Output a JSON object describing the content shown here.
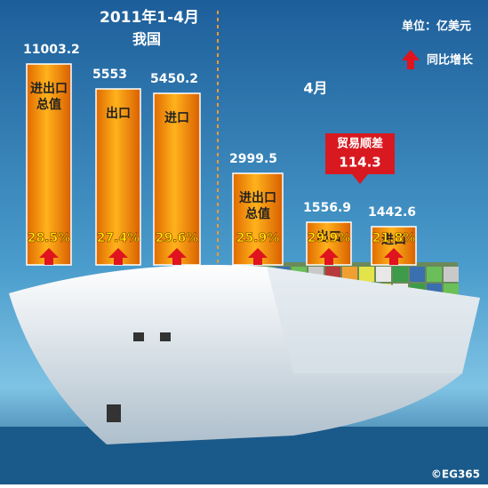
{
  "header": {
    "period": "2011年1-4月",
    "scope": "我国",
    "unit": "单位：亿美元",
    "legend": "同比增长"
  },
  "month_label": "4月",
  "groups": [
    {
      "bars": [
        {
          "value": "11003.2",
          "name": [
            "进出口",
            "总值"
          ],
          "growth": "28.5%"
        },
        {
          "value": "5553",
          "name": [
            "出口"
          ],
          "growth": "27.4%"
        },
        {
          "value": "5450.2",
          "name": [
            "进口"
          ],
          "growth": "29.6%"
        }
      ]
    },
    {
      "bars": [
        {
          "value": "2999.5",
          "name": [
            "进出口",
            "总值"
          ],
          "growth": "25.9%"
        },
        {
          "value": "1556.9",
          "name": [
            "出口"
          ],
          "growth": "29.9%"
        },
        {
          "value": "1442.6",
          "name": [
            "进口"
          ],
          "growth": "21.8%"
        }
      ]
    }
  ],
  "surplus": {
    "label": "贸易顺差",
    "value": "114.3"
  },
  "credit": "©EG365"
}
